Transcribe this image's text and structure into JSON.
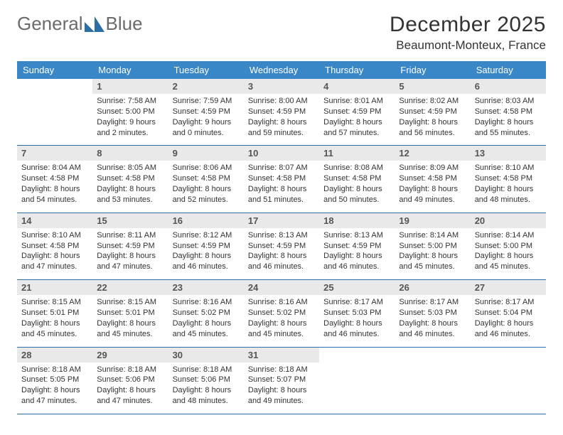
{
  "brand": {
    "part1": "General",
    "part2": "Blue"
  },
  "title": "December 2025",
  "location": "Beaumont-Monteux, France",
  "colors": {
    "header_bg": "#3a87c8",
    "header_text": "#ffffff",
    "daynum_bg": "#e9e9e9",
    "row_border": "#2c6fa8",
    "logo_gray": "#6b6b6b",
    "logo_blue": "#2c6fa8"
  },
  "weekdays": [
    "Sunday",
    "Monday",
    "Tuesday",
    "Wednesday",
    "Thursday",
    "Friday",
    "Saturday"
  ],
  "weeks": [
    [
      null,
      {
        "n": "1",
        "sunrise": "7:58 AM",
        "sunset": "5:00 PM",
        "daylight": "9 hours and 2 minutes."
      },
      {
        "n": "2",
        "sunrise": "7:59 AM",
        "sunset": "4:59 PM",
        "daylight": "9 hours and 0 minutes."
      },
      {
        "n": "3",
        "sunrise": "8:00 AM",
        "sunset": "4:59 PM",
        "daylight": "8 hours and 59 minutes."
      },
      {
        "n": "4",
        "sunrise": "8:01 AM",
        "sunset": "4:59 PM",
        "daylight": "8 hours and 57 minutes."
      },
      {
        "n": "5",
        "sunrise": "8:02 AM",
        "sunset": "4:59 PM",
        "daylight": "8 hours and 56 minutes."
      },
      {
        "n": "6",
        "sunrise": "8:03 AM",
        "sunset": "4:58 PM",
        "daylight": "8 hours and 55 minutes."
      }
    ],
    [
      {
        "n": "7",
        "sunrise": "8:04 AM",
        "sunset": "4:58 PM",
        "daylight": "8 hours and 54 minutes."
      },
      {
        "n": "8",
        "sunrise": "8:05 AM",
        "sunset": "4:58 PM",
        "daylight": "8 hours and 53 minutes."
      },
      {
        "n": "9",
        "sunrise": "8:06 AM",
        "sunset": "4:58 PM",
        "daylight": "8 hours and 52 minutes."
      },
      {
        "n": "10",
        "sunrise": "8:07 AM",
        "sunset": "4:58 PM",
        "daylight": "8 hours and 51 minutes."
      },
      {
        "n": "11",
        "sunrise": "8:08 AM",
        "sunset": "4:58 PM",
        "daylight": "8 hours and 50 minutes."
      },
      {
        "n": "12",
        "sunrise": "8:09 AM",
        "sunset": "4:58 PM",
        "daylight": "8 hours and 49 minutes."
      },
      {
        "n": "13",
        "sunrise": "8:10 AM",
        "sunset": "4:58 PM",
        "daylight": "8 hours and 48 minutes."
      }
    ],
    [
      {
        "n": "14",
        "sunrise": "8:10 AM",
        "sunset": "4:58 PM",
        "daylight": "8 hours and 47 minutes."
      },
      {
        "n": "15",
        "sunrise": "8:11 AM",
        "sunset": "4:59 PM",
        "daylight": "8 hours and 47 minutes."
      },
      {
        "n": "16",
        "sunrise": "8:12 AM",
        "sunset": "4:59 PM",
        "daylight": "8 hours and 46 minutes."
      },
      {
        "n": "17",
        "sunrise": "8:13 AM",
        "sunset": "4:59 PM",
        "daylight": "8 hours and 46 minutes."
      },
      {
        "n": "18",
        "sunrise": "8:13 AM",
        "sunset": "4:59 PM",
        "daylight": "8 hours and 46 minutes."
      },
      {
        "n": "19",
        "sunrise": "8:14 AM",
        "sunset": "5:00 PM",
        "daylight": "8 hours and 45 minutes."
      },
      {
        "n": "20",
        "sunrise": "8:14 AM",
        "sunset": "5:00 PM",
        "daylight": "8 hours and 45 minutes."
      }
    ],
    [
      {
        "n": "21",
        "sunrise": "8:15 AM",
        "sunset": "5:01 PM",
        "daylight": "8 hours and 45 minutes."
      },
      {
        "n": "22",
        "sunrise": "8:15 AM",
        "sunset": "5:01 PM",
        "daylight": "8 hours and 45 minutes."
      },
      {
        "n": "23",
        "sunrise": "8:16 AM",
        "sunset": "5:02 PM",
        "daylight": "8 hours and 45 minutes."
      },
      {
        "n": "24",
        "sunrise": "8:16 AM",
        "sunset": "5:02 PM",
        "daylight": "8 hours and 45 minutes."
      },
      {
        "n": "25",
        "sunrise": "8:17 AM",
        "sunset": "5:03 PM",
        "daylight": "8 hours and 46 minutes."
      },
      {
        "n": "26",
        "sunrise": "8:17 AM",
        "sunset": "5:03 PM",
        "daylight": "8 hours and 46 minutes."
      },
      {
        "n": "27",
        "sunrise": "8:17 AM",
        "sunset": "5:04 PM",
        "daylight": "8 hours and 46 minutes."
      }
    ],
    [
      {
        "n": "28",
        "sunrise": "8:18 AM",
        "sunset": "5:05 PM",
        "daylight": "8 hours and 47 minutes."
      },
      {
        "n": "29",
        "sunrise": "8:18 AM",
        "sunset": "5:06 PM",
        "daylight": "8 hours and 47 minutes."
      },
      {
        "n": "30",
        "sunrise": "8:18 AM",
        "sunset": "5:06 PM",
        "daylight": "8 hours and 48 minutes."
      },
      {
        "n": "31",
        "sunrise": "8:18 AM",
        "sunset": "5:07 PM",
        "daylight": "8 hours and 49 minutes."
      },
      null,
      null,
      null
    ]
  ],
  "labels": {
    "sunrise": "Sunrise:",
    "sunset": "Sunset:",
    "daylight": "Daylight:"
  }
}
